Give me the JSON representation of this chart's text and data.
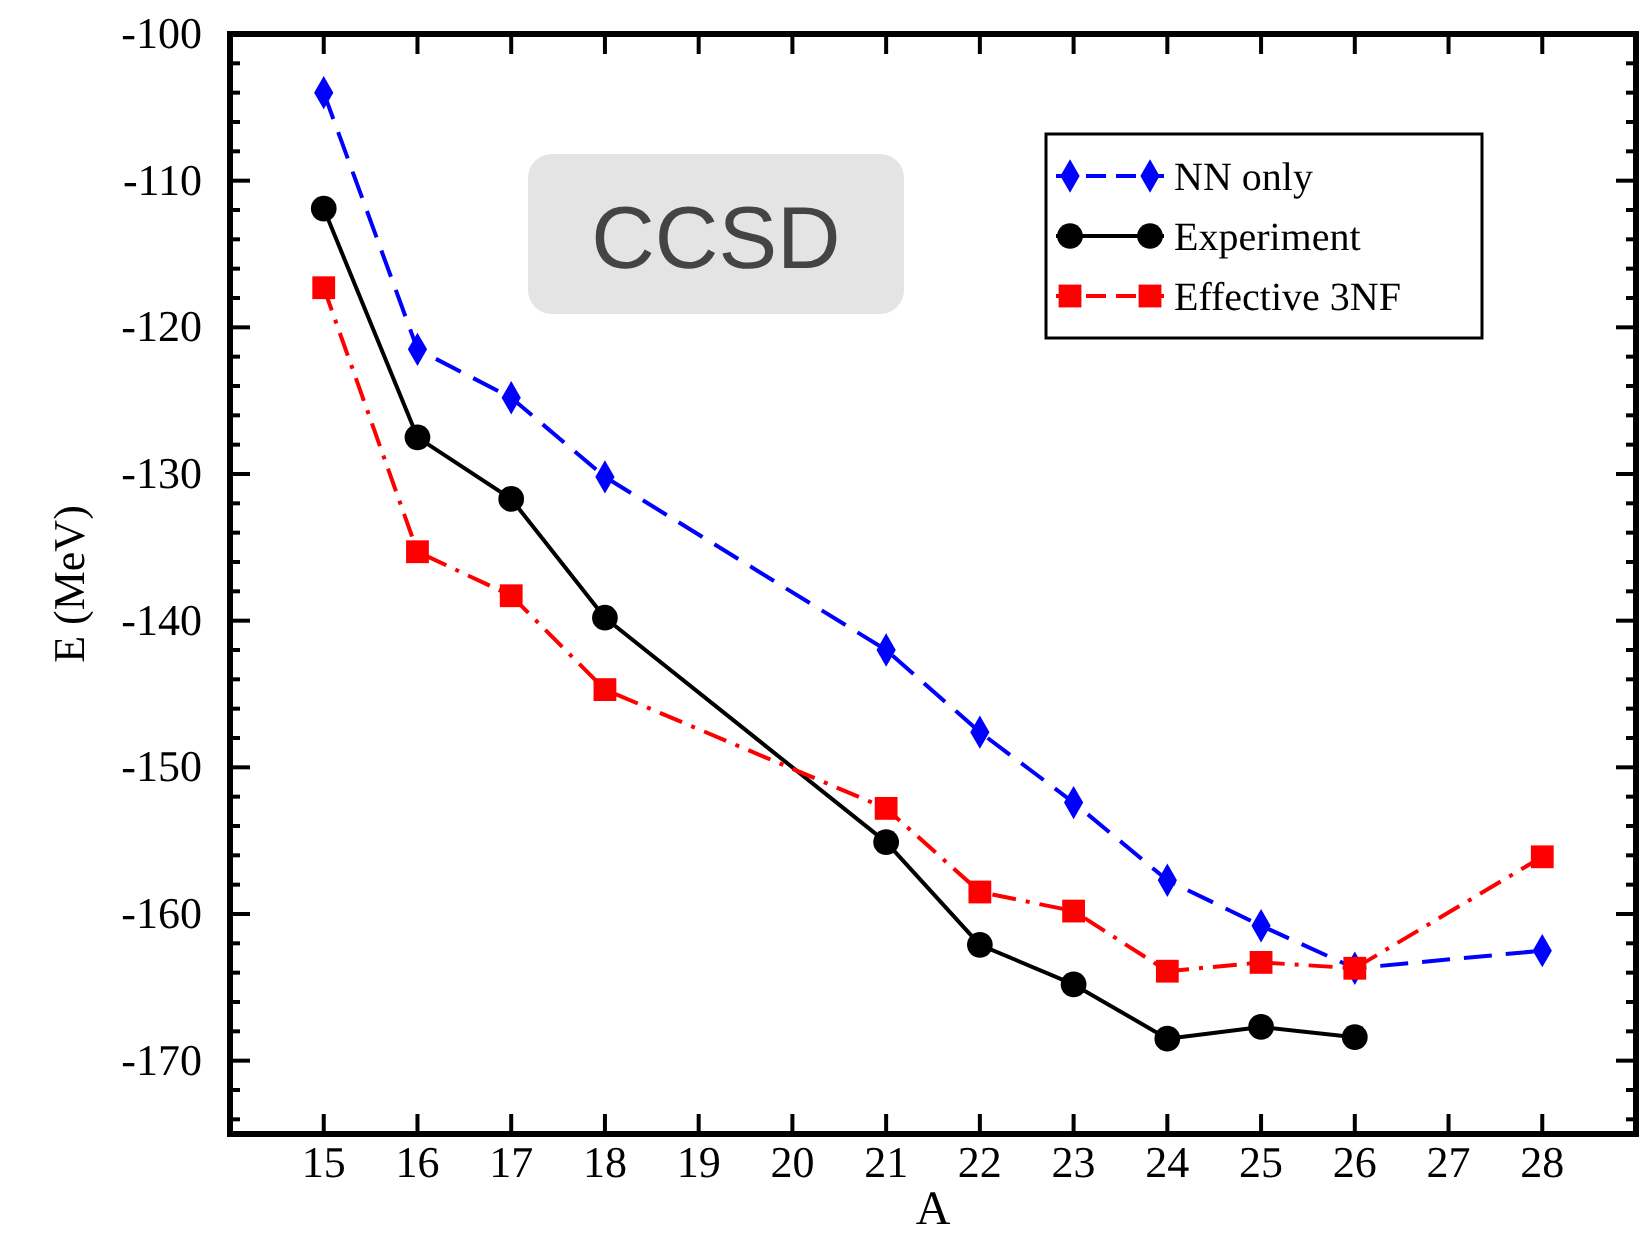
{
  "chart_data": {
    "type": "line",
    "xlabel": "A",
    "ylabel": "E (MeV)",
    "annotations": [
      "CCSD"
    ],
    "xlim": [
      14,
      29
    ],
    "xticks": [
      15,
      16,
      17,
      18,
      19,
      20,
      21,
      22,
      23,
      24,
      25,
      26,
      27,
      28
    ],
    "ylim": [
      -175,
      -100
    ],
    "yticks": [
      -100,
      {
        "value": -102,
        "label": null
      },
      {
        "value": -104,
        "label": null
      },
      {
        "value": -106,
        "label": null
      },
      {
        "value": -108,
        "label": null
      },
      -110,
      {
        "value": -112,
        "label": null
      },
      {
        "value": -114,
        "label": null
      },
      {
        "value": -116,
        "label": null
      },
      {
        "value": -118,
        "label": null
      },
      -120,
      {
        "value": -122,
        "label": null
      },
      {
        "value": -124,
        "label": null
      },
      {
        "value": -126,
        "label": null
      },
      {
        "value": -128,
        "label": null
      },
      -130,
      {
        "value": -132,
        "label": null
      },
      {
        "value": -134,
        "label": null
      },
      {
        "value": -136,
        "label": null
      },
      {
        "value": -138,
        "label": null
      },
      -140,
      {
        "value": -142,
        "label": null
      },
      {
        "value": -144,
        "label": null
      },
      {
        "value": -146,
        "label": null
      },
      {
        "value": -148,
        "label": null
      },
      -150,
      {
        "value": -152,
        "label": null
      },
      {
        "value": -154,
        "label": null
      },
      {
        "value": -156,
        "label": null
      },
      {
        "value": -158,
        "label": null
      },
      -160,
      {
        "value": -162,
        "label": null
      },
      {
        "value": -164,
        "label": null
      },
      {
        "value": -166,
        "label": null
      },
      {
        "value": -168,
        "label": null
      },
      -170,
      {
        "value": -172,
        "label": null
      },
      {
        "value": -174,
        "label": null
      }
    ],
    "grid": false,
    "legend": "top right",
    "series": [
      {
        "name": "NN only",
        "color": "#0000ff",
        "marker": "diamond",
        "line_style": "dashed",
        "x": [
          15,
          16,
          17,
          18,
          21,
          22,
          23,
          24,
          25,
          26,
          28
        ],
        "values": [
          -104.0,
          -121.5,
          -124.8,
          -130.2,
          -142.0,
          -147.6,
          -152.4,
          -157.7,
          -160.8,
          -163.7,
          -162.5
        ]
      },
      {
        "name": "Experiment",
        "color": "#000000",
        "marker": "circle",
        "line_style": "solid",
        "x": [
          15,
          16,
          17,
          18,
          21,
          22,
          23,
          24,
          25,
          26
        ],
        "values": [
          -111.9,
          -127.5,
          -131.7,
          -139.8,
          -155.1,
          -162.1,
          -164.8,
          -168.5,
          -167.7,
          -168.4
        ]
      },
      {
        "name": "Effective 3NF",
        "color": "#ff0000",
        "marker": "square",
        "line_style": "dashdot",
        "x": [
          15,
          16,
          17,
          18,
          21,
          22,
          23,
          24,
          25,
          26,
          28
        ],
        "values": [
          -117.3,
          -135.3,
          -138.3,
          -144.7,
          -152.8,
          -158.5,
          -159.8,
          -163.9,
          -163.3,
          -163.7,
          -156.1
        ]
      }
    ]
  }
}
